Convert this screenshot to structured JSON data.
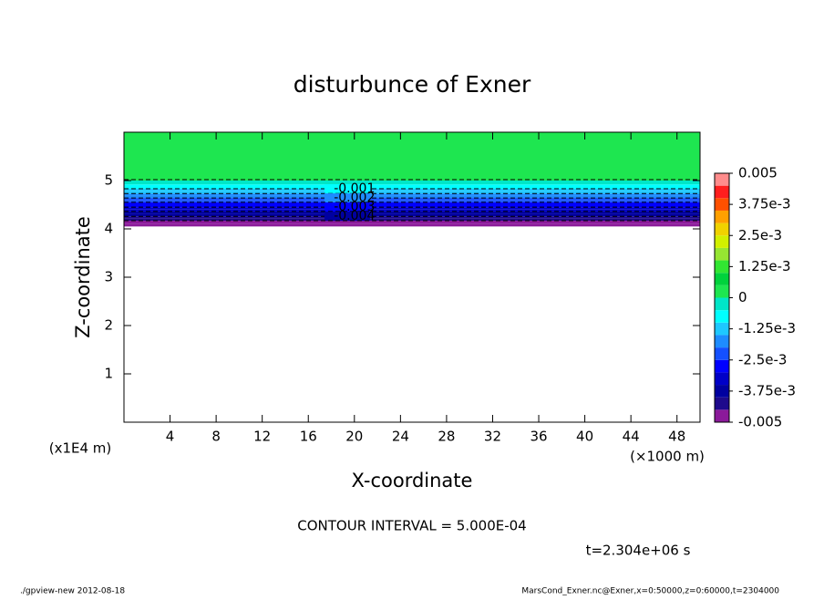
{
  "chart_data": {
    "type": "contour",
    "title": "disturbunce of Exner",
    "xlabel": "X-coordinate",
    "ylabel": "Z-coordinate",
    "x_unit_label": "(×1000 m)",
    "y_unit_label": "(x1E4 m)",
    "xlim": [
      0,
      50
    ],
    "xticks": [
      4,
      8,
      12,
      16,
      20,
      24,
      28,
      32,
      36,
      40,
      44,
      48
    ],
    "ylim": [
      0,
      6
    ],
    "yticks": [
      1,
      2,
      3,
      4,
      5
    ],
    "profile_z": [
      4.05,
      4.1,
      4.17,
      4.22,
      4.26,
      4.31,
      4.36,
      4.41,
      4.45,
      4.5,
      4.55,
      4.6,
      4.64,
      4.69,
      4.73,
      4.78,
      4.83,
      4.92,
      5.0,
      6.0
    ],
    "profile_values": [
      -0.0049,
      -0.0047,
      -0.0044,
      -0.0041,
      -0.0039,
      -0.0036,
      -0.0034,
      -0.0031,
      -0.0029,
      -0.0026,
      -0.0024,
      -0.0021,
      -0.0019,
      -0.0016,
      -0.0014,
      -0.0011,
      -0.0008,
      -0.0003,
      0.0002
    ],
    "contours": {
      "levels": [
        -0.0005,
        -0.001,
        -0.0015,
        -0.002,
        -0.0025,
        -0.003,
        -0.0035,
        -0.004,
        -0.0045
      ],
      "z": [
        5.02,
        4.83,
        4.73,
        4.64,
        4.55,
        4.45,
        4.36,
        4.26,
        4.17
      ],
      "labels": [
        null,
        "-0.001",
        null,
        "-0.002",
        null,
        "-0.003",
        null,
        "-0.004",
        null
      ]
    },
    "colorbar": {
      "levels": [
        -0.005,
        -0.0045,
        -0.004,
        -0.0035,
        -0.003,
        -0.0025,
        -0.002,
        -0.0015,
        -0.001,
        -0.0005,
        0,
        0.0005,
        0.001,
        0.0015,
        0.002,
        0.0025,
        0.003,
        0.0035,
        0.004,
        0.0045,
        0.005
      ],
      "colors": [
        "#8b1a9a",
        "#1e0a8c",
        "#0000a0",
        "#0000c8",
        "#0000ff",
        "#1450ff",
        "#1e8cff",
        "#1ec8ff",
        "#00ffff",
        "#00e6c8",
        "#1ee650",
        "#00d23c",
        "#32e632",
        "#96e632",
        "#d2f000",
        "#f0d200",
        "#ffa000",
        "#ff5000",
        "#ff1e1e",
        "#ff8c8c"
      ],
      "ticks": [
        -0.005,
        {
          "value": -0.00375,
          "label": "-3.75e-3"
        },
        {
          "value": -0.0025,
          "label": "-2.5e-3"
        },
        {
          "value": -0.00125,
          "label": "-1.25e-3"
        },
        0,
        {
          "value": 0.00125,
          "label": "1.25e-3"
        },
        {
          "value": 0.0025,
          "label": "2.5e-3"
        },
        {
          "value": 0.00375,
          "label": "3.75e-3"
        },
        0.005
      ]
    },
    "contour_interval_text": "CONTOUR INTERVAL = 5.000E-04",
    "time_text": "t=2.304e+06 s",
    "footer_left": "./gpview-new  2012-08-18",
    "footer_right": "MarsCond_Exner.nc@Exner,x=0:50000,z=0:60000,t=2304000"
  }
}
